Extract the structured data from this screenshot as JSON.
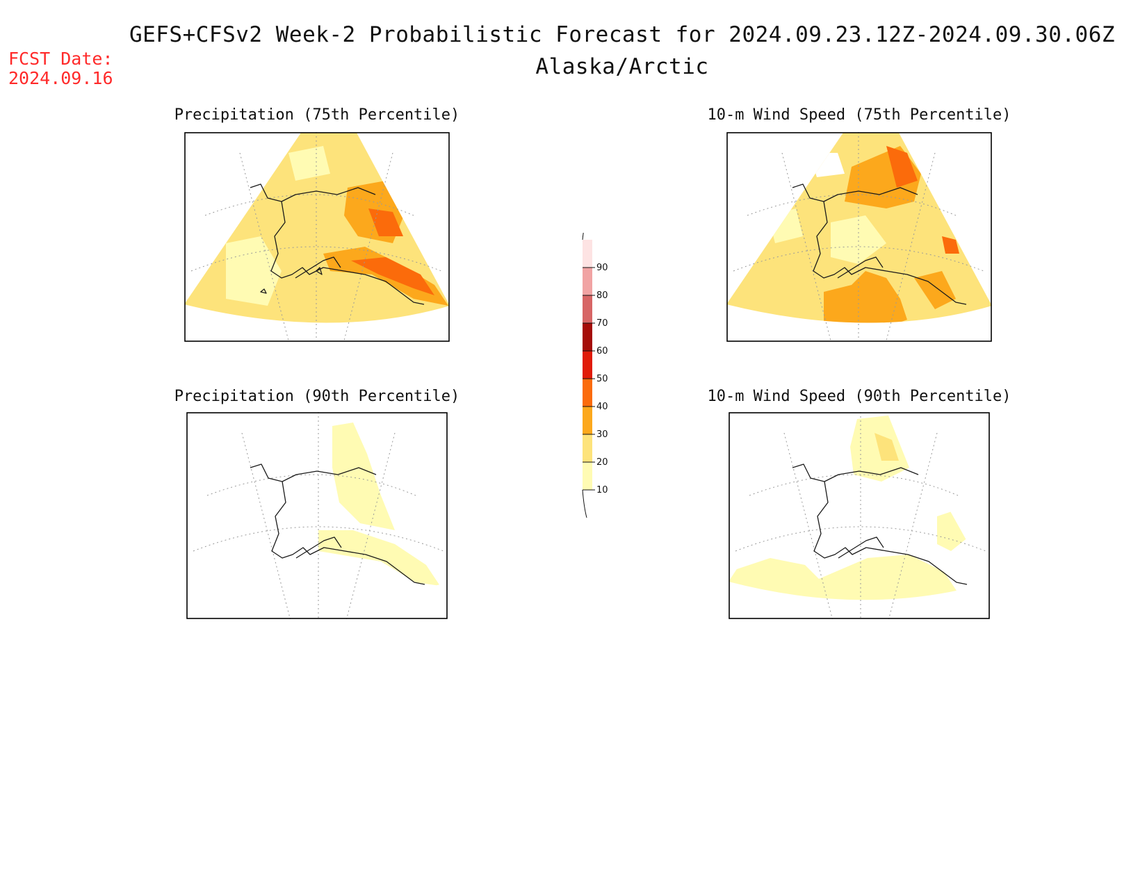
{
  "header": {
    "title": "GEFS+CFSv2 Week-2 Probabilistic Forecast for 2024.09.23.12Z-2024.09.30.06Z",
    "region": "Alaska/Arctic",
    "fcst_label": "FCST Date:",
    "fcst_date": "2024.09.16"
  },
  "panels": [
    {
      "id": "precip-75",
      "title": "Precipitation (75th Percentile)"
    },
    {
      "id": "wind-75",
      "title": "10-m Wind Speed (75th Percentile)"
    },
    {
      "id": "precip-90",
      "title": "Precipitation (90th Percentile)"
    },
    {
      "id": "wind-90",
      "title": "10-m Wind Speed (90th Percentile)"
    }
  ],
  "colorbar": {
    "ticks": [
      "10",
      "20",
      "30",
      "40",
      "50",
      "60",
      "70",
      "80",
      "90"
    ],
    "colors": [
      "#fffbb3",
      "#fde37b",
      "#fca81c",
      "#fb6b0b",
      "#e01b08",
      "#a50c08",
      "#d76565",
      "#f1a3a3",
      "#fde3e3"
    ]
  },
  "fill_colors": {
    "level_10": "#fffbb3",
    "level_20": "#fde37b",
    "level_30": "#fca81c",
    "level_40": "#fb6b0b"
  }
}
